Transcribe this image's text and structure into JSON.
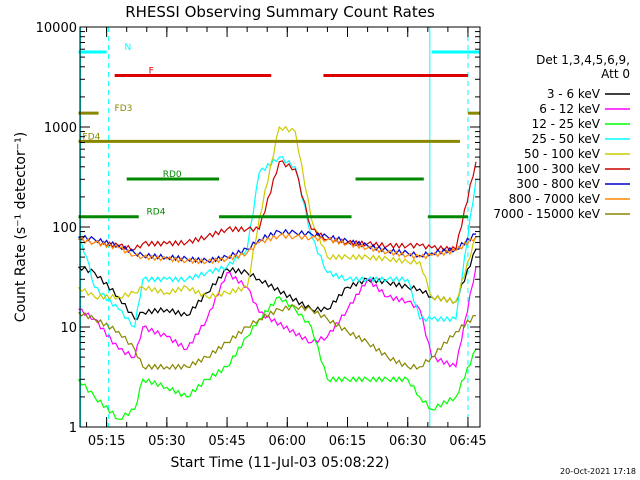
{
  "chart_data": {
    "type": "line",
    "title": "RHESSI Observing Summary Count Rates",
    "xlabel": "Start Time (11-Jul-03 05:08:22)",
    "ylabel": "Count Rate (s⁻¹ detector⁻¹)",
    "y_scale": "log",
    "ylim": [
      1,
      10000
    ],
    "xlim": [
      "05:08:22",
      "06:48:00"
    ],
    "x_ticks": [
      "05:15",
      "05:30",
      "05:45",
      "06:00",
      "06:15",
      "06:30",
      "06:45"
    ],
    "y_ticks": [
      "1",
      "10",
      "100",
      "1000",
      "10000"
    ],
    "grid": false,
    "legend_placement": "right",
    "legend_header": [
      "Det 1,3,4,5,6,9,",
      "Att 0"
    ],
    "series": [
      {
        "name": "3 - 6 keV",
        "color": "#000000",
        "x": [
          "05:08",
          "05:12",
          "05:18",
          "05:22",
          "05:24",
          "05:30",
          "05:35",
          "05:40",
          "05:45",
          "05:50",
          "05:53",
          "06:06",
          "06:10",
          "06:15",
          "06:20",
          "06:25",
          "06:30",
          "06:33",
          "06:36",
          "06:42",
          "06:47"
        ],
        "y": [
          40,
          35,
          20,
          12,
          14,
          15,
          13,
          22,
          38,
          35,
          30,
          15,
          15,
          25,
          30,
          28,
          25,
          24,
          20,
          18,
          60
        ]
      },
      {
        "name": "6 - 12 keV",
        "color": "#ff00ff",
        "x": [
          "05:08",
          "05:12",
          "05:18",
          "05:22",
          "05:24",
          "05:30",
          "05:35",
          "05:40",
          "05:45",
          "05:50",
          "05:53",
          "06:06",
          "06:10",
          "06:15",
          "06:20",
          "06:25",
          "06:30",
          "06:33",
          "06:36",
          "06:42",
          "06:47"
        ],
        "y": [
          15,
          12,
          6,
          5,
          10,
          8,
          6,
          12,
          35,
          25,
          14,
          7,
          8,
          15,
          30,
          20,
          18,
          15,
          5,
          4,
          40
        ]
      },
      {
        "name": "12 - 25 keV",
        "color": "#00ff00",
        "x": [
          "05:08",
          "05:12",
          "05:18",
          "05:22",
          "05:24",
          "05:30",
          "05:35",
          "05:40",
          "05:45",
          "05:50",
          "05:53",
          "05:58",
          "06:02",
          "06:06",
          "06:10",
          "06:15",
          "06:20",
          "06:25",
          "06:30",
          "06:33",
          "06:36",
          "06:42",
          "06:47"
        ],
        "y": [
          3,
          2,
          1.2,
          1.5,
          3,
          2.5,
          2,
          3,
          4,
          8,
          12,
          20,
          15,
          10,
          3,
          3,
          3,
          3,
          3,
          2,
          1.5,
          2,
          6
        ]
      },
      {
        "name": "25 - 50 keV",
        "color": "#00ffff",
        "x": [
          "05:08",
          "05:10",
          "05:12",
          "05:18",
          "05:22",
          "05:24",
          "05:30",
          "05:35",
          "05:40",
          "05:45",
          "05:50",
          "05:53",
          "05:58",
          "06:02",
          "06:06",
          "06:10",
          "06:15",
          "06:20",
          "06:25",
          "06:30",
          "06:33",
          "06:36",
          "06:42",
          "06:47"
        ],
        "y": [
          80,
          50,
          25,
          15,
          10,
          30,
          30,
          30,
          35,
          40,
          60,
          350,
          500,
          400,
          80,
          35,
          30,
          30,
          30,
          30,
          12,
          12,
          12,
          300
        ]
      },
      {
        "name": "50 - 100 keV",
        "color": "#cccc00",
        "x": [
          "05:08",
          "05:12",
          "05:18",
          "05:22",
          "05:24",
          "05:30",
          "05:35",
          "05:40",
          "05:45",
          "05:50",
          "05:53",
          "05:58",
          "06:02",
          "06:06",
          "06:10",
          "06:15",
          "06:20",
          "06:25",
          "06:30",
          "06:33",
          "06:36",
          "06:42",
          "06:47"
        ],
        "y": [
          25,
          20,
          20,
          22,
          25,
          22,
          25,
          20,
          22,
          25,
          120,
          1000,
          900,
          120,
          50,
          50,
          50,
          48,
          45,
          45,
          20,
          18,
          80
        ]
      },
      {
        "name": "100 - 300 keV",
        "color": "#cc0000",
        "x": [
          "05:08",
          "05:12",
          "05:18",
          "05:22",
          "05:24",
          "05:30",
          "05:35",
          "05:40",
          "05:45",
          "05:50",
          "05:53",
          "05:58",
          "06:02",
          "06:06",
          "06:10",
          "06:15",
          "06:20",
          "06:25",
          "06:30",
          "06:33",
          "06:36",
          "06:42",
          "06:47"
        ],
        "y": [
          75,
          70,
          65,
          60,
          68,
          68,
          70,
          80,
          95,
          95,
          95,
          450,
          380,
          95,
          75,
          70,
          68,
          65,
          65,
          65,
          62,
          60,
          450
        ]
      },
      {
        "name": "300 - 800 keV",
        "color": "#0000cc",
        "x": [
          "05:08",
          "05:12",
          "05:18",
          "05:22",
          "05:24",
          "05:30",
          "05:35",
          "05:40",
          "05:45",
          "05:50",
          "05:53",
          "05:58",
          "06:02",
          "06:06",
          "06:10",
          "06:15",
          "06:20",
          "06:25",
          "06:30",
          "06:33",
          "06:36",
          "06:42",
          "06:47"
        ],
        "y": [
          80,
          75,
          65,
          55,
          52,
          50,
          48,
          46,
          50,
          60,
          75,
          90,
          88,
          85,
          80,
          72,
          65,
          58,
          55,
          52,
          55,
          60,
          85
        ]
      },
      {
        "name": "800 - 7000 keV",
        "color": "#ff8800",
        "x": [
          "05:08",
          "05:12",
          "05:18",
          "05:22",
          "05:24",
          "05:30",
          "05:35",
          "05:40",
          "05:45",
          "05:50",
          "05:53",
          "05:58",
          "06:02",
          "06:06",
          "06:10",
          "06:15",
          "06:20",
          "06:25",
          "06:30",
          "06:33",
          "06:36",
          "06:42",
          "06:47"
        ],
        "y": [
          75,
          70,
          62,
          52,
          50,
          48,
          46,
          45,
          48,
          55,
          70,
          82,
          80,
          78,
          75,
          68,
          62,
          56,
          52,
          50,
          52,
          58,
          80
        ]
      },
      {
        "name": "7000 - 15000 keV",
        "color": "#888800",
        "x": [
          "05:08",
          "05:12",
          "05:18",
          "05:22",
          "05:24",
          "05:30",
          "05:35",
          "05:40",
          "05:45",
          "05:50",
          "05:53",
          "05:58",
          "06:02",
          "06:06",
          "06:10",
          "06:15",
          "06:20",
          "06:25",
          "06:30",
          "06:33",
          "06:36",
          "06:42",
          "06:47"
        ],
        "y": [
          14,
          12,
          9,
          6,
          4,
          4,
          4,
          5,
          7,
          10,
          12,
          15,
          16,
          15,
          12,
          9,
          7,
          5,
          4,
          4,
          5,
          9,
          13
        ]
      }
    ],
    "flag_bars": [
      {
        "label": "N",
        "color": "#00ffff",
        "level": 8.5,
        "segments": [
          [
            "05:08",
            "05:15"
          ],
          [
            "06:36",
            "06:48"
          ]
        ]
      },
      {
        "label": "F",
        "color": "#dd0000",
        "level": 8.0,
        "segments": [
          [
            "05:17",
            "05:56"
          ],
          [
            "06:09",
            "06:45"
          ]
        ]
      },
      {
        "label": "FD3",
        "color": "#888800",
        "level": 7.2,
        "segments": [
          [
            "05:08",
            "05:13"
          ],
          [
            "06:45",
            "06:48"
          ]
        ]
      },
      {
        "label": "FD4",
        "color": "#888800",
        "level": 6.6,
        "segments": [
          [
            "05:08",
            "06:43"
          ]
        ]
      },
      {
        "label": "RD0",
        "color": "#008800",
        "level": 5.8,
        "segments": [
          [
            "05:20",
            "05:43"
          ],
          [
            "06:17",
            "06:34"
          ]
        ]
      },
      {
        "label": "RD4",
        "color": "#008800",
        "level": 5.0,
        "segments": [
          [
            "05:08",
            "05:23"
          ],
          [
            "05:43",
            "06:16"
          ],
          [
            "06:35",
            "06:45"
          ]
        ]
      }
    ],
    "vlines": [
      {
        "time": "05:08:30",
        "color": "#00ffff",
        "style": "solid"
      },
      {
        "time": "05:15:30",
        "color": "#00ffff",
        "style": "dashed"
      },
      {
        "time": "06:35:30",
        "color": "#00ffff",
        "style": "solid"
      },
      {
        "time": "06:45:00",
        "color": "#00ffff",
        "style": "dashed"
      }
    ],
    "footer_date": "20-Oct-2021 17:18"
  }
}
